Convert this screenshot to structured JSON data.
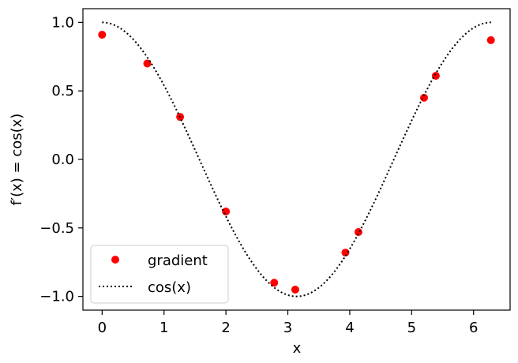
{
  "chart_data": {
    "type": "scatter",
    "xlabel": "x",
    "ylabel": "f′(x) = cos(x)",
    "xlim": [
      -0.31,
      6.59
    ],
    "ylim": [
      -1.1,
      1.1
    ],
    "xticks": [
      0,
      1,
      2,
      3,
      4,
      5,
      6
    ],
    "xtick_labels": [
      "0",
      "1",
      "2",
      "3",
      "4",
      "5",
      "6"
    ],
    "yticks": [
      -1.0,
      -0.5,
      0.0,
      0.5,
      1.0
    ],
    "ytick_labels": [
      "−1.0",
      "−0.5",
      "0.0",
      "0.5",
      "1.0"
    ],
    "grid": false,
    "legend_position": "lower-left",
    "series": [
      {
        "name": "gradient",
        "kind": "scatter",
        "color": "#ff0000",
        "x": [
          0.0,
          0.73,
          1.26,
          2.0,
          2.78,
          3.12,
          3.93,
          4.14,
          5.2,
          5.39,
          6.28
        ],
        "y": [
          0.91,
          0.7,
          0.31,
          -0.38,
          -0.9,
          -0.95,
          -0.68,
          -0.53,
          0.45,
          0.61,
          0.87
        ]
      },
      {
        "name": "cos(x)",
        "kind": "line",
        "style": "dotted",
        "color": "#000000",
        "function": "cos",
        "domain": [
          0,
          6.2832
        ]
      }
    ]
  }
}
